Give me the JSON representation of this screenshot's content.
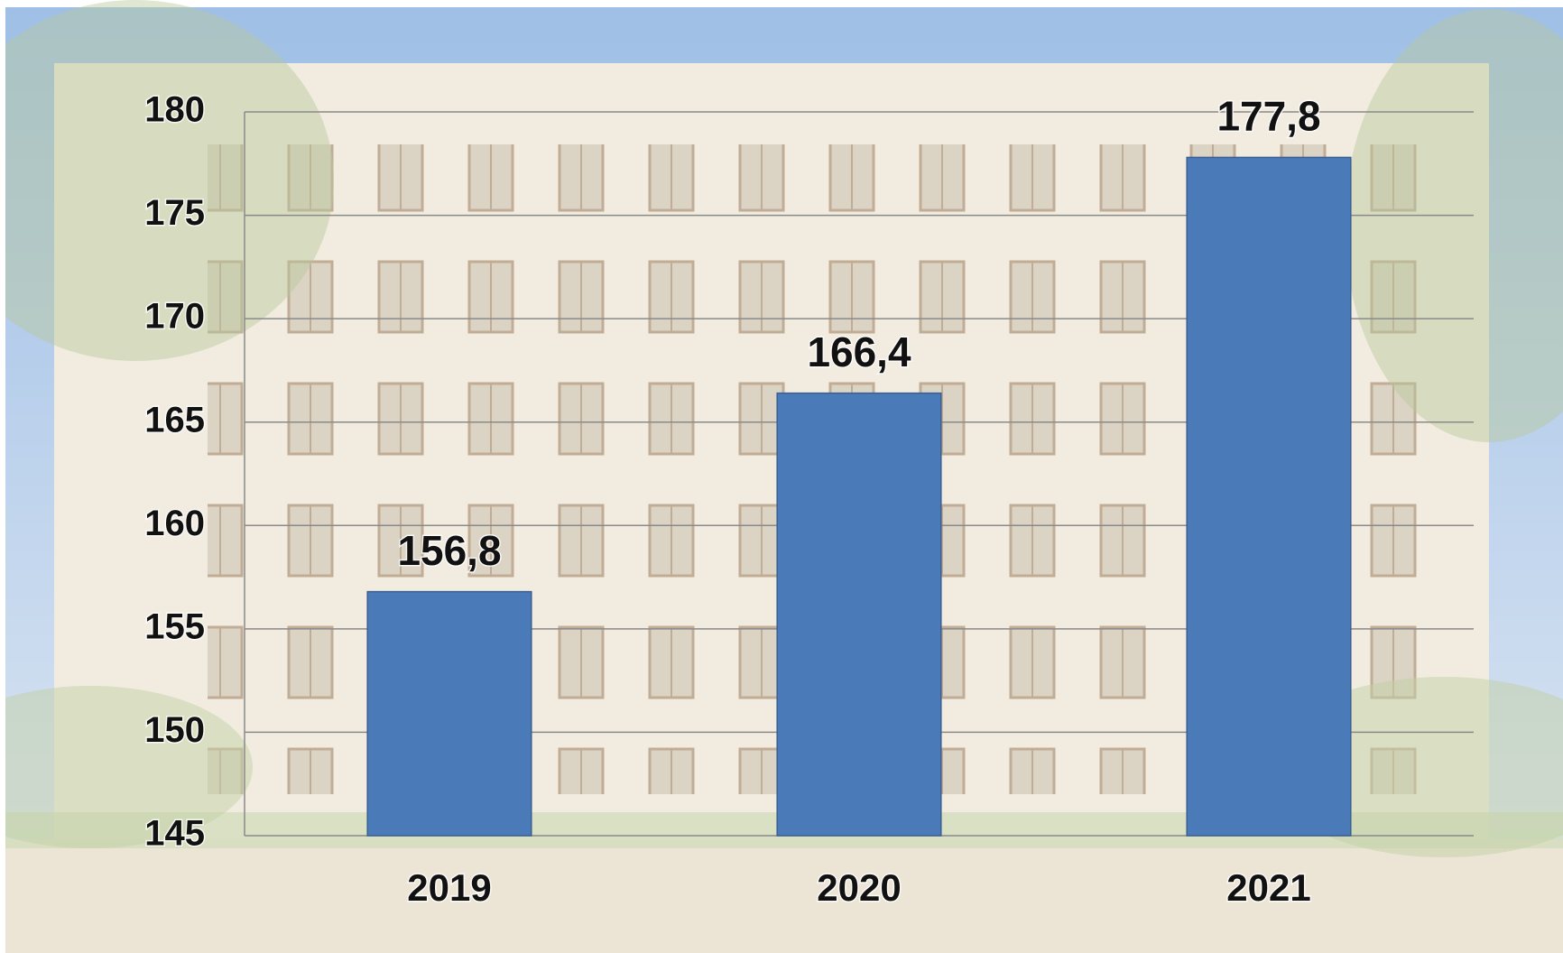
{
  "chart_data": {
    "type": "bar",
    "categories": [
      "2019",
      "2020",
      "2021"
    ],
    "values": [
      156.8,
      166.4,
      177.8
    ],
    "value_labels": [
      "156,8",
      "166,4",
      "177,8"
    ],
    "color": "#4a7ab8",
    "ylim": [
      145,
      180
    ],
    "yticks": [
      145,
      150,
      155,
      160,
      165,
      170,
      175,
      180
    ],
    "grid": true
  }
}
